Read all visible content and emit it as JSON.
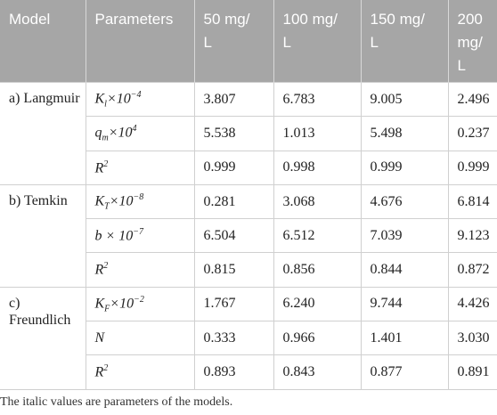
{
  "table": {
    "header": [
      "Model",
      "Parameters",
      "50 mg/L",
      "100 mg/L",
      "150 mg/L",
      "200 mg/L"
    ],
    "groups": [
      {
        "model": "a) Langmuir",
        "rows": [
          {
            "parameter": {
              "base": "K",
              "sub": "l",
              "rest": "×10",
              "sup": "−4"
            },
            "values": [
              "3.807",
              "6.783",
              "9.005",
              "2.496"
            ]
          },
          {
            "parameter": {
              "base": "q",
              "sub": "m",
              "rest": "×10",
              "sup": "4"
            },
            "values": [
              "5.538",
              "1.013",
              "5.498",
              "0.237"
            ]
          },
          {
            "parameter": {
              "base": "R",
              "sup": "2"
            },
            "values": [
              "0.999",
              "0.998",
              "0.999",
              "0.999"
            ]
          }
        ]
      },
      {
        "model": "b) Temkin",
        "rows": [
          {
            "parameter": {
              "base": "K",
              "sub": "T",
              "rest": "×10",
              "sup": "−8"
            },
            "values": [
              "0.281",
              "3.068",
              "4.676",
              "6.814"
            ]
          },
          {
            "parameter": {
              "base": "b × 10",
              "sup": "−7"
            },
            "values": [
              "6.504",
              "6.512",
              "7.039",
              "9.123"
            ]
          },
          {
            "parameter": {
              "base": "R",
              "sup": "2"
            },
            "values": [
              "0.815",
              "0.856",
              "0.844",
              "0.872"
            ]
          }
        ]
      },
      {
        "model": "c) Freundlich",
        "rows": [
          {
            "parameter": {
              "base": "K",
              "sub": "F",
              "rest": "×10",
              "sup": "−2"
            },
            "values": [
              "1.767",
              "6.240",
              "9.744",
              "4.426"
            ]
          },
          {
            "parameter": {
              "base": "N"
            },
            "values": [
              "0.333",
              "0.966",
              "1.401",
              "3.030"
            ]
          },
          {
            "parameter": {
              "base": "R",
              "sup": "2"
            },
            "values": [
              "0.893",
              "0.843",
              "0.877",
              "0.891"
            ]
          }
        ]
      }
    ]
  },
  "footnote": "The italic values are parameters of the models."
}
